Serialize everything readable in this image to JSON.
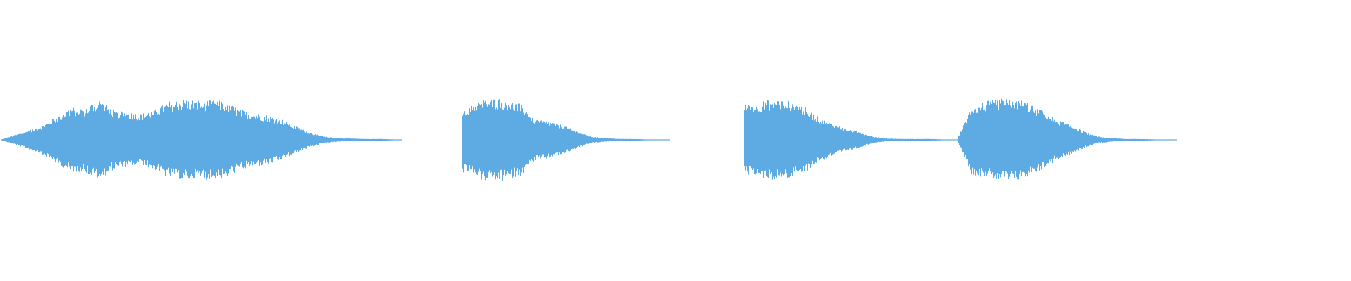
{
  "chart_data": {
    "type": "area",
    "title": "",
    "xlabel": "",
    "ylabel": "",
    "grid": false,
    "legend": "none",
    "color": "#5DABE2",
    "background": "#FFFFFF",
    "series": [
      {
        "envelope_peak_amplitude": [
          0,
          0.1,
          0.2,
          0.31,
          0.5,
          0.69,
          0.69,
          0.87,
          0.64,
          0.6,
          0.56,
          0.65,
          0.82,
          0.87,
          0.85,
          0.84,
          0.82,
          0.65,
          0.58,
          0.53,
          0.44,
          0.29,
          0.16,
          0.07,
          0.04,
          0.03,
          0.02,
          0.02,
          0.01,
          0,
          0,
          0,
          0,
          0.7,
          0.84,
          0.9,
          0.87,
          0.76,
          0.45,
          0.4,
          0.31,
          0.18,
          0.07,
          0.04,
          0.02,
          0.02,
          0.01,
          0.01,
          0,
          0,
          0,
          0,
          0,
          0.76,
          0.82,
          0.87,
          0.84,
          0.73,
          0.51,
          0.36,
          0.25,
          0.18,
          0.07,
          0.03,
          0.02,
          0.02,
          0.02,
          0.01,
          0.01,
          0.73,
          0.82,
          0.87,
          0.9,
          0.8,
          0.64,
          0.45,
          0.33,
          0.18,
          0.07,
          0.04,
          0.02,
          0.02,
          0.01,
          0.01,
          0,
          0,
          0,
          0,
          0,
          0,
          0,
          0,
          0,
          0,
          0,
          0
        ]
      }
    ]
  }
}
